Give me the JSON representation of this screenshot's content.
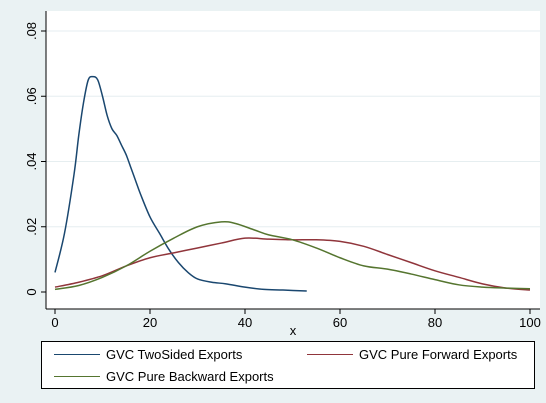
{
  "chart_data": {
    "type": "line",
    "title": "",
    "xlabel": "x",
    "ylabel": "",
    "xlim": [
      0,
      100
    ],
    "ylim": [
      0,
      0.08
    ],
    "x_ticks": [
      {
        "value": 0,
        "label": "0"
      },
      {
        "value": 20,
        "label": "20"
      },
      {
        "value": 40,
        "label": "40"
      },
      {
        "value": 60,
        "label": "60"
      },
      {
        "value": 80,
        "label": "80"
      },
      {
        "value": 100,
        "label": "100"
      }
    ],
    "y_ticks": [
      {
        "value": 0,
        "label": "0"
      },
      {
        "value": 0.02,
        "label": ".02"
      },
      {
        "value": 0.04,
        "label": ".04"
      },
      {
        "value": 0.06,
        "label": ".06"
      },
      {
        "value": 0.08,
        "label": ".08"
      }
    ],
    "grid": true,
    "legend_position": "bottom",
    "series": [
      {
        "name": "GVC TwoSided Exports",
        "color": "#1a476f",
        "points": [
          [
            0,
            0.006
          ],
          [
            2,
            0.018
          ],
          [
            4,
            0.036
          ],
          [
            5,
            0.048
          ],
          [
            6,
            0.058
          ],
          [
            7,
            0.065
          ],
          [
            8,
            0.066
          ],
          [
            9,
            0.065
          ],
          [
            10,
            0.06
          ],
          [
            11,
            0.054
          ],
          [
            12,
            0.05
          ],
          [
            13,
            0.048
          ],
          [
            14,
            0.045
          ],
          [
            15,
            0.042
          ],
          [
            16,
            0.038
          ],
          [
            17,
            0.034
          ],
          [
            18,
            0.03
          ],
          [
            20,
            0.023
          ],
          [
            22,
            0.018
          ],
          [
            24,
            0.013
          ],
          [
            26,
            0.009
          ],
          [
            28,
            0.006
          ],
          [
            30,
            0.004
          ],
          [
            33,
            0.003
          ],
          [
            36,
            0.0025
          ],
          [
            40,
            0.0015
          ],
          [
            44,
            0.0008
          ],
          [
            48,
            0.0006
          ],
          [
            53,
            0.0003
          ]
        ]
      },
      {
        "name": "GVC Pure Forward Exports",
        "color": "#90353b",
        "points": [
          [
            0,
            0.0015
          ],
          [
            5,
            0.003
          ],
          [
            10,
            0.005
          ],
          [
            15,
            0.008
          ],
          [
            20,
            0.0105
          ],
          [
            25,
            0.012
          ],
          [
            30,
            0.0135
          ],
          [
            35,
            0.015
          ],
          [
            40,
            0.0165
          ],
          [
            45,
            0.0162
          ],
          [
            50,
            0.016
          ],
          [
            55,
            0.016
          ],
          [
            60,
            0.0155
          ],
          [
            65,
            0.014
          ],
          [
            70,
            0.0115
          ],
          [
            75,
            0.009
          ],
          [
            80,
            0.0065
          ],
          [
            85,
            0.0045
          ],
          [
            90,
            0.0025
          ],
          [
            95,
            0.0012
          ],
          [
            100,
            0.0006
          ]
        ]
      },
      {
        "name": "GVC Pure Backward Exports",
        "color": "#55752f",
        "points": [
          [
            0,
            0.0008
          ],
          [
            5,
            0.002
          ],
          [
            10,
            0.0045
          ],
          [
            15,
            0.008
          ],
          [
            20,
            0.0125
          ],
          [
            25,
            0.0165
          ],
          [
            30,
            0.02
          ],
          [
            35,
            0.0215
          ],
          [
            38,
            0.021
          ],
          [
            42,
            0.019
          ],
          [
            45,
            0.0175
          ],
          [
            50,
            0.016
          ],
          [
            55,
            0.0135
          ],
          [
            60,
            0.0105
          ],
          [
            65,
            0.008
          ],
          [
            70,
            0.007
          ],
          [
            75,
            0.0055
          ],
          [
            80,
            0.0038
          ],
          [
            85,
            0.0022
          ],
          [
            90,
            0.0015
          ],
          [
            95,
            0.0012
          ],
          [
            100,
            0.001
          ]
        ]
      }
    ]
  }
}
